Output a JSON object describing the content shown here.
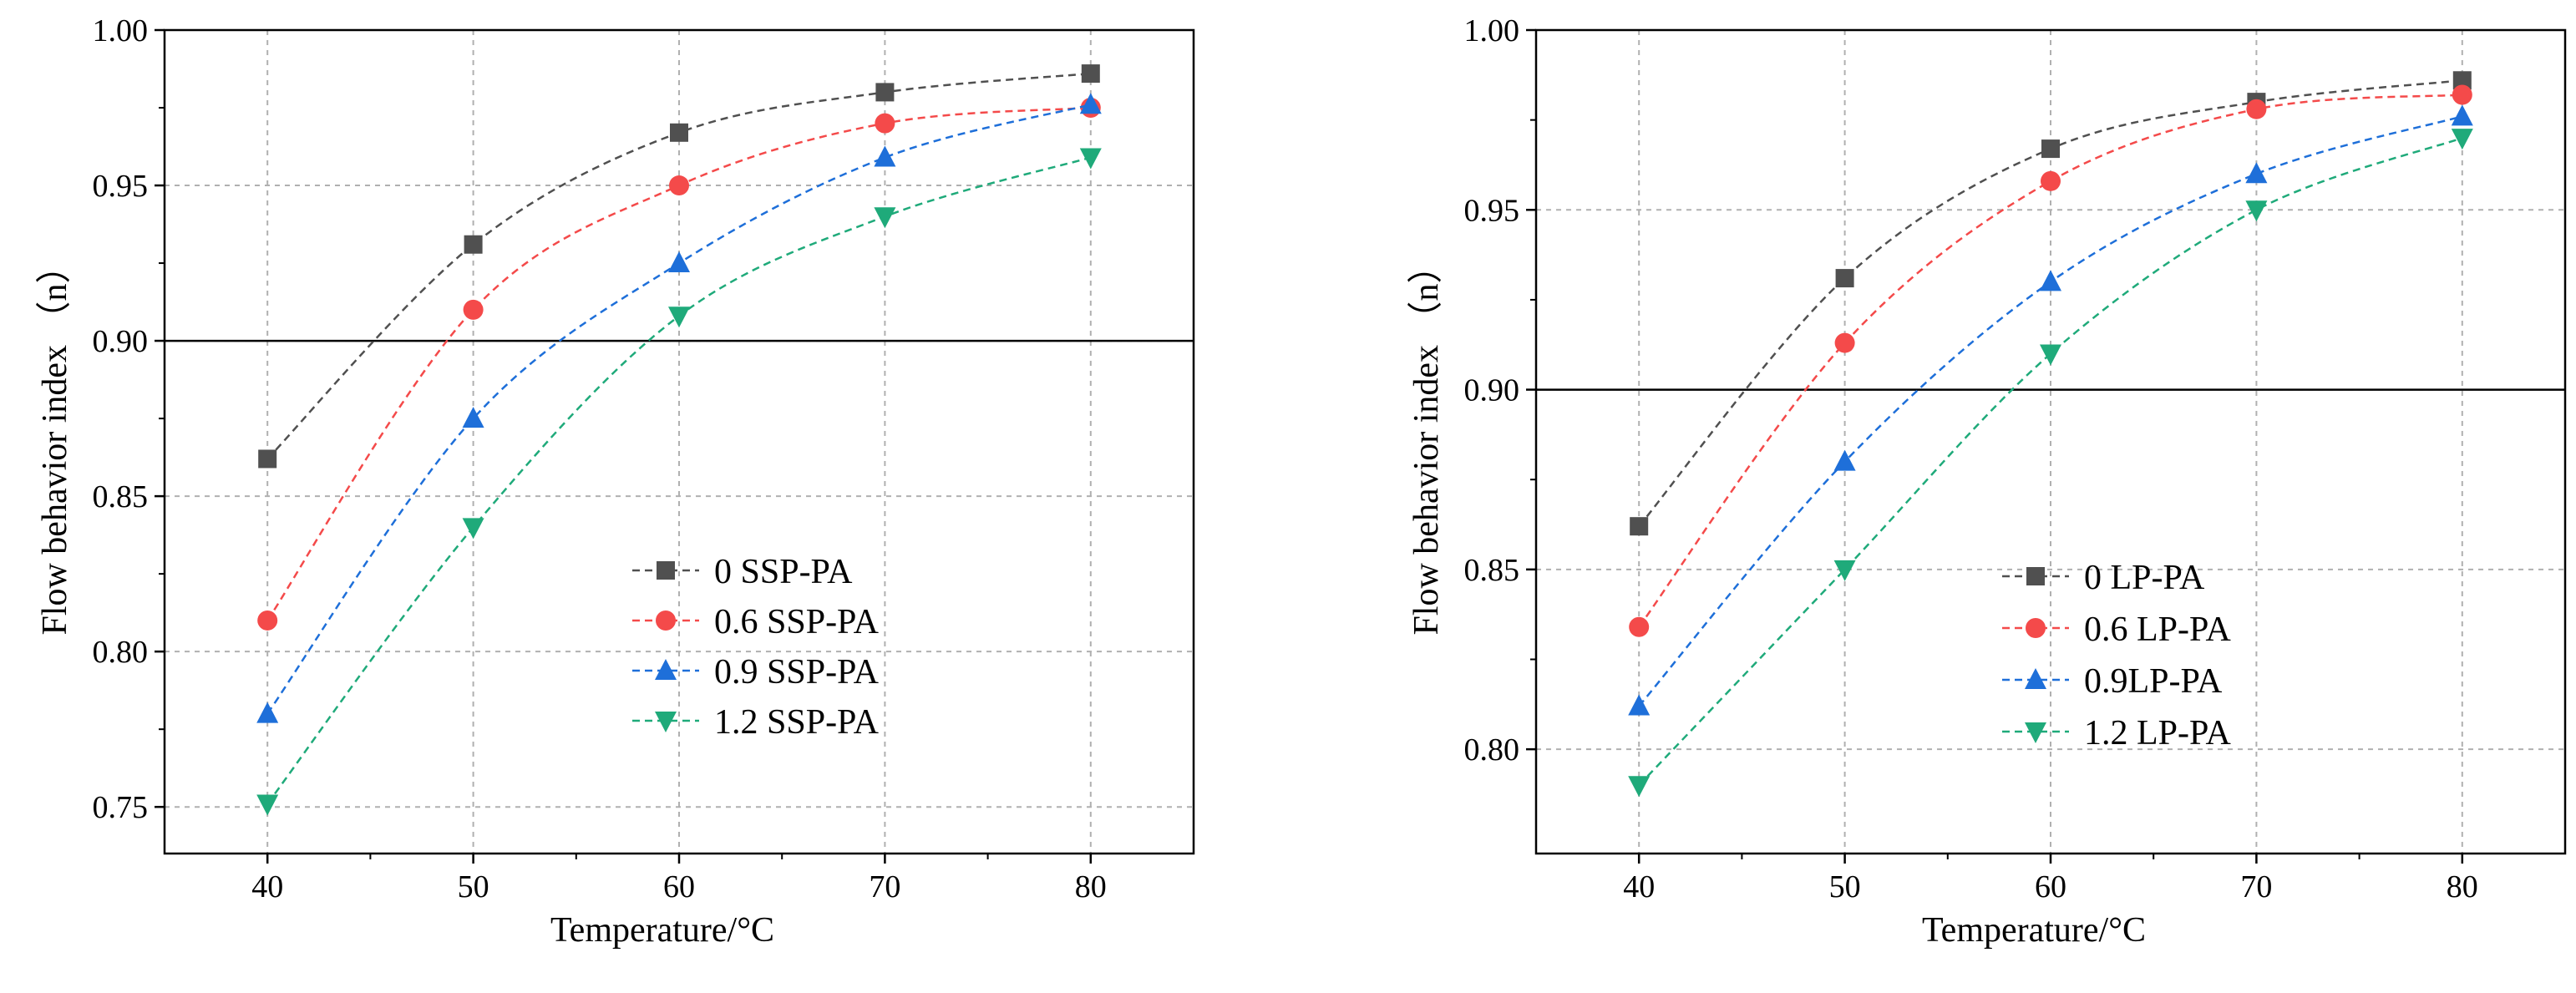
{
  "chart_data": [
    {
      "type": "line",
      "xlabel": "Temperature/°C",
      "ylabel": "Flow behavior index （n）",
      "x": [
        40,
        50,
        60,
        70,
        80
      ],
      "xlim": [
        35,
        85
      ],
      "ylim": [
        0.735,
        1.0
      ],
      "xticks": [
        "40",
        "50",
        "60",
        "70",
        "80"
      ],
      "yticks": [
        "0.75",
        "0.80",
        "0.85",
        "0.90",
        "0.95",
        "1.00"
      ],
      "reference_line": 0.9,
      "grid": true,
      "legend_position": "bottom-center",
      "series": [
        {
          "name": "0 SSP-PA",
          "values": [
            0.862,
            0.931,
            0.967,
            0.98,
            0.986
          ],
          "color": "#505050",
          "marker": "square"
        },
        {
          "name": "0.6 SSP-PA",
          "values": [
            0.81,
            0.91,
            0.95,
            0.97,
            0.975
          ],
          "color": "#f44a4a",
          "marker": "circle"
        },
        {
          "name": "0.9 SSP-PA",
          "values": [
            0.78,
            0.875,
            0.925,
            0.959,
            0.976
          ],
          "color": "#1e6fd9",
          "marker": "triangle-up"
        },
        {
          "name": "1.2 SSP-PA",
          "values": [
            0.751,
            0.84,
            0.908,
            0.94,
            0.959
          ],
          "color": "#1faa7a",
          "marker": "triangle-down"
        }
      ]
    },
    {
      "type": "line",
      "xlabel": "Temperature/°C",
      "ylabel": "Flow behavior index （n）",
      "x": [
        40,
        50,
        60,
        70,
        80
      ],
      "xlim": [
        35,
        85
      ],
      "ylim": [
        0.771,
        1.0
      ],
      "xticks": [
        "40",
        "50",
        "60",
        "70",
        "80"
      ],
      "yticks": [
        "0.80",
        "0.85",
        "0.90",
        "0.95",
        "1.00"
      ],
      "reference_line": 0.9,
      "grid": true,
      "legend_position": "bottom-center",
      "series": [
        {
          "name": "0 LP-PA",
          "values": [
            0.862,
            0.931,
            0.967,
            0.98,
            0.986
          ],
          "color": "#505050",
          "marker": "square"
        },
        {
          "name": "0.6 LP-PA",
          "values": [
            0.834,
            0.913,
            0.958,
            0.978,
            0.982
          ],
          "color": "#f44a4a",
          "marker": "circle"
        },
        {
          "name": "0.9LP-PA",
          "values": [
            0.812,
            0.88,
            0.93,
            0.96,
            0.976
          ],
          "color": "#1e6fd9",
          "marker": "triangle-up"
        },
        {
          "name": "1.2 LP-PA",
          "values": [
            0.79,
            0.85,
            0.91,
            0.95,
            0.97
          ],
          "color": "#1faa7a",
          "marker": "triangle-down"
        }
      ]
    }
  ]
}
